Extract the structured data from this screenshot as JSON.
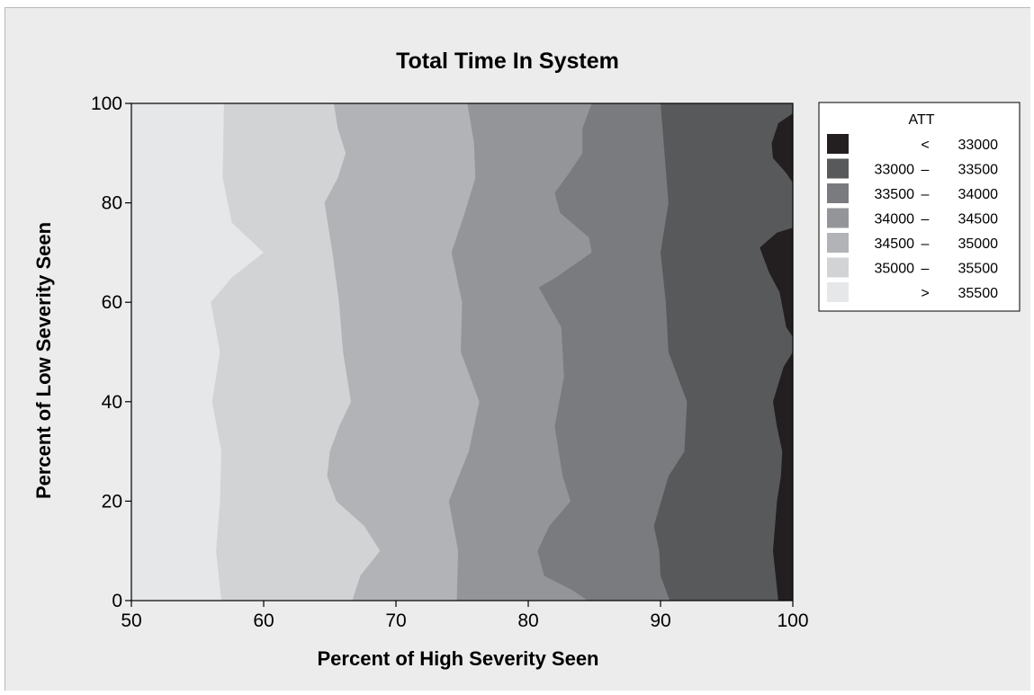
{
  "chart_data": {
    "type": "contour",
    "title": "Total Time In System",
    "xlabel": "Percent of High Severity Seen",
    "ylabel": "Percent of Low Severity Seen",
    "xlim": [
      50,
      100
    ],
    "ylim": [
      0,
      100
    ],
    "xticks": [
      "50",
      "60",
      "70",
      "80",
      "90",
      "100"
    ],
    "yticks": [
      "0",
      "20",
      "40",
      "60",
      "80",
      "100"
    ],
    "legend": {
      "title": "ATT",
      "placement": "right",
      "entries": [
        {
          "lo": "<",
          "hi": "33000",
          "color": "#231f20"
        },
        {
          "lo": "33000",
          "sep": "–",
          "hi": "33500",
          "color": "#58595b"
        },
        {
          "lo": "33500",
          "sep": "–",
          "hi": "34000",
          "color": "#7a7b7e"
        },
        {
          "lo": "34000",
          "sep": "–",
          "hi": "34500",
          "color": "#939598"
        },
        {
          "lo": "34500",
          "sep": "–",
          "hi": "35000",
          "color": "#b1b3b6"
        },
        {
          "lo": "35000",
          "sep": "–",
          "hi": "35500",
          "color": "#d1d3d4"
        },
        {
          "lo": ">",
          "hi": "35500",
          "color": "#e6e7e8"
        }
      ]
    },
    "contours": [
      {
        "level": "35500",
        "points": [
          [
            56.8,
            0
          ],
          [
            56.4,
            10
          ],
          [
            56.7,
            20
          ],
          [
            56.8,
            30
          ],
          [
            56.1,
            40
          ],
          [
            56.7,
            50
          ],
          [
            56.0,
            60
          ],
          [
            57.6,
            65
          ],
          [
            60.0,
            70
          ],
          [
            57.6,
            76
          ],
          [
            56.9,
            85
          ],
          [
            57.0,
            100
          ]
        ]
      },
      {
        "level": "35000",
        "points": [
          [
            66.7,
            0
          ],
          [
            67.3,
            5
          ],
          [
            68.8,
            10
          ],
          [
            67.6,
            15
          ],
          [
            65.5,
            20
          ],
          [
            64.8,
            25
          ],
          [
            65.0,
            30
          ],
          [
            65.7,
            35
          ],
          [
            66.6,
            40
          ],
          [
            66.0,
            50
          ],
          [
            65.7,
            60
          ],
          [
            65.2,
            70
          ],
          [
            64.6,
            80
          ],
          [
            65.6,
            85
          ],
          [
            66.2,
            90
          ],
          [
            65.6,
            95
          ],
          [
            65.3,
            100
          ]
        ]
      },
      {
        "level": "34500",
        "points": [
          [
            74.6,
            0
          ],
          [
            74.7,
            10
          ],
          [
            74.0,
            20
          ],
          [
            75.5,
            30
          ],
          [
            76.3,
            40
          ],
          [
            74.9,
            50
          ],
          [
            75.0,
            60
          ],
          [
            74.2,
            70
          ],
          [
            75.2,
            78
          ],
          [
            76.0,
            85
          ],
          [
            75.9,
            92
          ],
          [
            75.4,
            100
          ]
        ]
      },
      {
        "level": "34000",
        "points": [
          [
            84.5,
            0
          ],
          [
            83.4,
            2
          ],
          [
            81.2,
            5
          ],
          [
            80.7,
            10
          ],
          [
            81.6,
            15
          ],
          [
            83.2,
            20
          ],
          [
            82.6,
            25
          ],
          [
            82.0,
            35
          ],
          [
            82.7,
            45
          ],
          [
            82.5,
            55
          ],
          [
            80.8,
            63
          ],
          [
            82.1,
            65
          ],
          [
            84.8,
            70
          ],
          [
            84.6,
            73
          ],
          [
            82.4,
            78
          ],
          [
            82.0,
            82
          ],
          [
            83.1,
            86
          ],
          [
            84.1,
            90
          ],
          [
            84.1,
            95
          ],
          [
            84.8,
            100
          ]
        ]
      },
      {
        "level": "33500",
        "points": [
          [
            90.7,
            0
          ],
          [
            90.0,
            5
          ],
          [
            89.9,
            10
          ],
          [
            89.5,
            15
          ],
          [
            90.6,
            25
          ],
          [
            91.8,
            30
          ],
          [
            92.0,
            40
          ],
          [
            90.6,
            50
          ],
          [
            90.4,
            60
          ],
          [
            90.0,
            70
          ],
          [
            90.6,
            80
          ],
          [
            90.3,
            90
          ],
          [
            90.0,
            100
          ]
        ]
      },
      {
        "level": "33000",
        "points": [
          [
            98.9,
            0
          ],
          [
            98.5,
            10
          ],
          [
            98.8,
            20
          ],
          [
            99.1,
            25
          ],
          [
            99.2,
            30
          ],
          [
            98.8,
            35
          ],
          [
            98.5,
            40
          ],
          [
            99.3,
            47
          ],
          [
            100,
            50
          ]
        ]
      },
      {
        "level": "33000",
        "points": [
          [
            100,
            75
          ],
          [
            98.8,
            74
          ],
          [
            97.5,
            71
          ],
          [
            98.2,
            66
          ],
          [
            99.0,
            62
          ],
          [
            99.5,
            55
          ],
          [
            100,
            53
          ]
        ]
      },
      {
        "level": "33000",
        "points": [
          [
            100,
            98
          ],
          [
            98.9,
            96
          ],
          [
            98.4,
            92
          ],
          [
            98.5,
            89
          ],
          [
            99.5,
            86
          ],
          [
            100,
            84
          ]
        ]
      }
    ]
  }
}
